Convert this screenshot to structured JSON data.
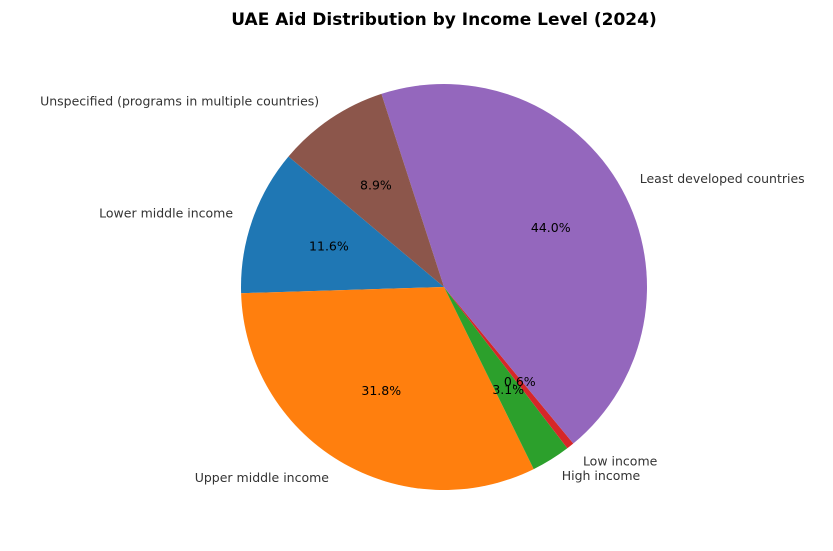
{
  "chart_data": {
    "type": "pie",
    "title": "UAE Aid Distribution by Income Level (2024)",
    "slices": [
      {
        "label": "Lower middle income",
        "value": 11.6,
        "pct_label": "11.6%",
        "color": "#1f77b4"
      },
      {
        "label": "Upper middle income",
        "value": 31.8,
        "pct_label": "31.8%",
        "color": "#ff7f0e"
      },
      {
        "label": "High income",
        "value": 3.1,
        "pct_label": "3.1%",
        "color": "#2ca02c"
      },
      {
        "label": "Low income",
        "value": 0.6,
        "pct_label": "0.6%",
        "color": "#d62728"
      },
      {
        "label": "Least developed countries",
        "value": 44.0,
        "pct_label": "44.0%",
        "color": "#9467bd"
      },
      {
        "label": "Unspecified (programs in multiple countries)",
        "value": 8.9,
        "pct_label": "8.9%",
        "color": "#8c564b"
      }
    ],
    "start_angle_deg": 140,
    "direction": "counterclockwise"
  }
}
